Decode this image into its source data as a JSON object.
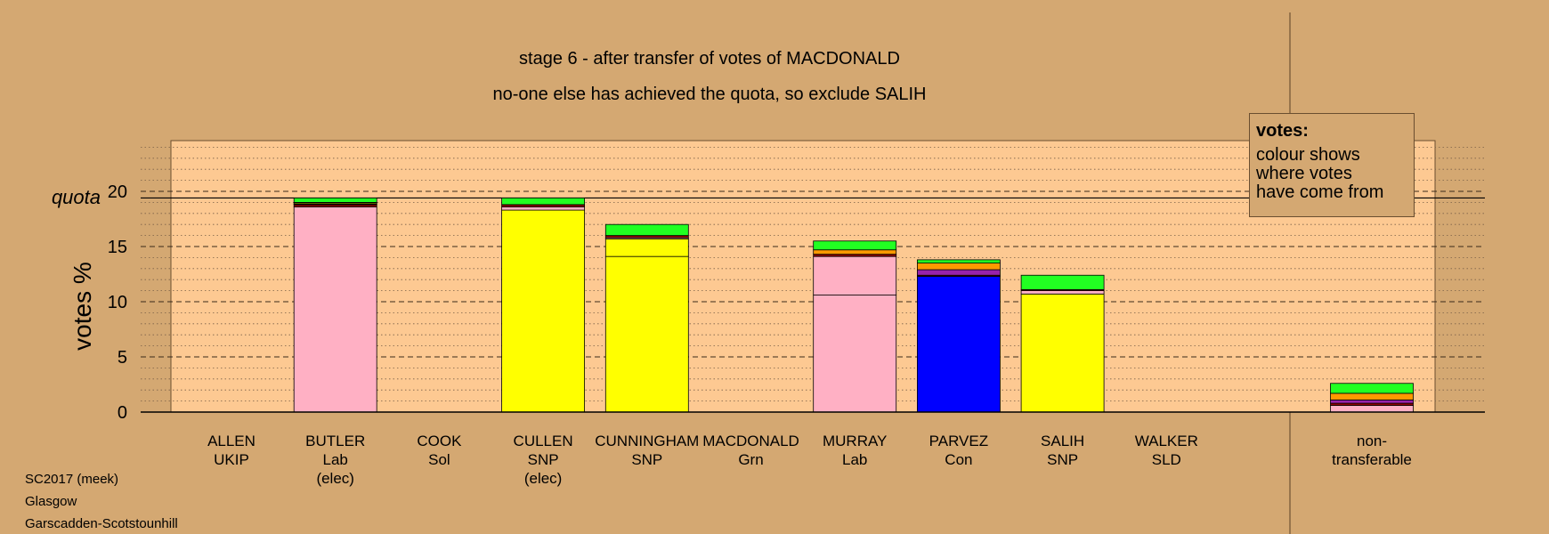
{
  "title": "stage 6 - after transfer of votes of MACDONALD",
  "subtitle": "no-one else has achieved the quota, so exclude SALIH",
  "legend": {
    "title": "votes:",
    "lines": [
      "colour shows",
      "where votes",
      "have come from"
    ]
  },
  "footer": [
    "SC2017 (meek)",
    "Glasgow",
    "Garscadden-Scotstounhill"
  ],
  "colors": {
    "background": "#d4a872",
    "plot_area": "#fdc992",
    "Lab": "#ffb0c4",
    "SNP": "#ffff00",
    "Con": "#0000ff",
    "Grn": "#22ff22",
    "Sol": "#8b0000",
    "SLD": "#ff9900",
    "UKIP": "#9922aa",
    "other": "#d4a872"
  },
  "chart_data": {
    "type": "bar",
    "stacked": true,
    "title": "stage 6 - after transfer of votes of MACDONALD",
    "subtitle": "no-one else has achieved the quota, so exclude SALIH",
    "ylabel": "votes %",
    "ylim": [
      0,
      25
    ],
    "yticks": [
      0,
      5,
      10,
      15,
      20
    ],
    "quota": 19.4,
    "quota_label": "quota",
    "grid": "horizontal dashed major, dotted minor",
    "legend_position": "top-right",
    "candidates": [
      {
        "name": "ALLEN",
        "party": "UKIP",
        "status": "",
        "segments": []
      },
      {
        "name": "BUTLER",
        "party": "Lab",
        "status": "(elec)",
        "segments": [
          {
            "source": "Lab",
            "value": 18.6
          },
          {
            "source": "Sol",
            "value": 0.2
          },
          {
            "source": "UKIP",
            "value": 0.05
          },
          {
            "source": "SNP",
            "value": 0.1
          },
          {
            "source": "SLD",
            "value": 0.05
          },
          {
            "source": "Grn",
            "value": 0.4
          }
        ]
      },
      {
        "name": "COOK",
        "party": "Sol",
        "status": "",
        "segments": []
      },
      {
        "name": "CULLEN",
        "party": "SNP",
        "status": "(elec)",
        "segments": [
          {
            "source": "SNP",
            "value": 18.3
          },
          {
            "source": "Lab",
            "value": 0.3
          },
          {
            "source": "Sol",
            "value": 0.2
          },
          {
            "source": "Grn",
            "value": 0.6
          }
        ]
      },
      {
        "name": "CUNNINGHAM",
        "party": "SNP",
        "status": "",
        "segments": [
          {
            "source": "SNP",
            "value": 14.1
          },
          {
            "source": "SNP",
            "value": 1.6
          },
          {
            "source": "Lab",
            "value": 0.1
          },
          {
            "source": "Sol",
            "value": 0.2
          },
          {
            "source": "Grn",
            "value": 1.0
          }
        ]
      },
      {
        "name": "MACDONALD",
        "party": "Grn",
        "status": "",
        "segments": []
      },
      {
        "name": "MURRAY",
        "party": "Lab",
        "status": "",
        "segments": [
          {
            "source": "Lab",
            "value": 10.6
          },
          {
            "source": "Lab",
            "value": 3.5
          },
          {
            "source": "Sol",
            "value": 0.2
          },
          {
            "source": "SLD",
            "value": 0.4
          },
          {
            "source": "Grn",
            "value": 0.8
          }
        ]
      },
      {
        "name": "PARVEZ",
        "party": "Con",
        "status": "",
        "segments": [
          {
            "source": "Con",
            "value": 12.3
          },
          {
            "source": "Sol",
            "value": 0.1
          },
          {
            "source": "UKIP",
            "value": 0.5
          },
          {
            "source": "SLD",
            "value": 0.6
          },
          {
            "source": "Grn",
            "value": 0.3
          }
        ]
      },
      {
        "name": "SALIH",
        "party": "SNP",
        "status": "",
        "segments": [
          {
            "source": "SNP",
            "value": 10.7
          },
          {
            "source": "Lab",
            "value": 0.3
          },
          {
            "source": "Sol",
            "value": 0.1
          },
          {
            "source": "Grn",
            "value": 1.3
          }
        ]
      },
      {
        "name": "WALKER",
        "party": "SLD",
        "status": "",
        "segments": []
      }
    ],
    "non_transferable": {
      "label_lines": [
        "non-",
        "transferable"
      ],
      "segments": [
        {
          "source": "Lab",
          "value": 0.6
        },
        {
          "source": "Sol",
          "value": 0.2
        },
        {
          "source": "UKIP",
          "value": 0.3
        },
        {
          "source": "SLD",
          "value": 0.6
        },
        {
          "source": "Grn",
          "value": 0.9
        }
      ]
    }
  }
}
